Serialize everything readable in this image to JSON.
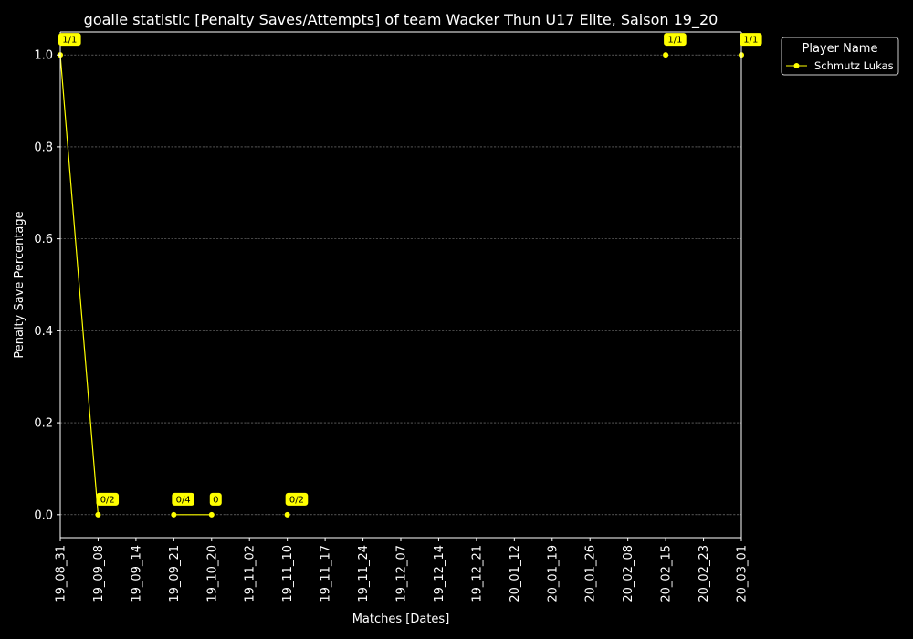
{
  "chart_data": {
    "type": "line",
    "title": "goalie statistic [Penalty Saves/Attempts] of team Wacker Thun U17 Elite, Saison 19_20",
    "xlabel": "Matches [Dates]",
    "ylabel": "Penalty Save Percentage",
    "categories": [
      "19_08_31",
      "19_09_08",
      "19_09_14",
      "19_09_21",
      "19_10_20",
      "19_11_02",
      "19_11_10",
      "19_11_17",
      "19_11_24",
      "19_12_07",
      "19_12_14",
      "19_12_21",
      "20_01_12",
      "20_01_19",
      "20_01_26",
      "20_02_08",
      "20_02_15",
      "20_02_23",
      "20_03_01"
    ],
    "ylim": [
      -0.05,
      1.05
    ],
    "yticks": [
      0.0,
      0.2,
      0.4,
      0.6,
      0.8,
      1.0
    ],
    "ytick_labels": [
      "0.0",
      "0.2",
      "0.4",
      "0.6",
      "0.8",
      "1.0"
    ],
    "grid": "y",
    "series": [
      {
        "name": "Schmutz Lukas",
        "color": "#ffff00",
        "values": [
          1.0,
          0.0,
          null,
          0.0,
          0.0,
          null,
          0.0,
          null,
          null,
          null,
          null,
          null,
          null,
          null,
          null,
          null,
          1.0,
          null,
          1.0
        ],
        "labels": [
          "1/1",
          "0/2",
          null,
          "0/4",
          "0",
          null,
          "0/2",
          null,
          null,
          null,
          null,
          null,
          null,
          null,
          null,
          null,
          "1/1",
          null,
          "1/1"
        ]
      }
    ],
    "legend": {
      "title": "Player Name",
      "position": "outside-top-right"
    }
  }
}
